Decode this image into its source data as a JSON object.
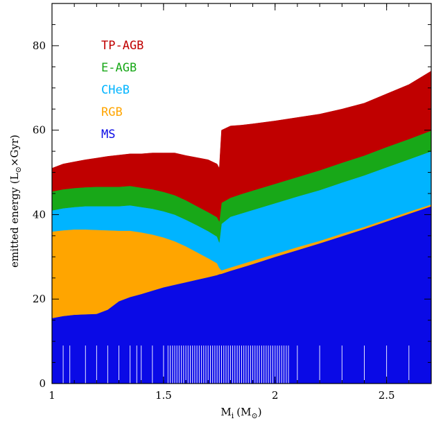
{
  "chart_data": {
    "type": "area",
    "stacked": true,
    "xlabel": "M",
    "xlabel_sub": "i",
    "xlabel_unit": "(M",
    "xlabel_unit_sub": "⊙",
    "xlabel_close": ")",
    "ylabel": "emitted energy (L",
    "ylabel_sub": "⊙",
    "ylabel_tail": "×Gyr)",
    "xlim": [
      1.0,
      2.7
    ],
    "ylim": [
      0,
      90
    ],
    "x_ticks": [
      1,
      1.5,
      2,
      2.5
    ],
    "x_tick_labels": [
      "1",
      "1.5",
      "2",
      "2.5"
    ],
    "y_ticks": [
      0,
      20,
      40,
      60,
      80
    ],
    "y_tick_labels": [
      "0",
      "20",
      "40",
      "60",
      "80"
    ],
    "legend_placement": "top-left, inside plot",
    "grid": false,
    "x": [
      1.0,
      1.05,
      1.1,
      1.15,
      1.2,
      1.25,
      1.3,
      1.35,
      1.4,
      1.45,
      1.5,
      1.55,
      1.6,
      1.65,
      1.7,
      1.74,
      1.75,
      1.76,
      1.8,
      1.85,
      1.9,
      2.0,
      2.1,
      2.2,
      2.3,
      2.4,
      2.5,
      2.6,
      2.7
    ],
    "series": [
      {
        "name": "MS",
        "color": "#0a0ae6",
        "values": [
          15.5,
          16.0,
          16.3,
          16.4,
          16.5,
          17.5,
          19.5,
          20.5,
          21.2,
          22.0,
          22.8,
          23.4,
          24.0,
          24.6,
          25.2,
          25.7,
          25.9,
          26.0,
          26.7,
          27.5,
          28.3,
          30.0,
          31.6,
          33.2,
          34.9,
          36.6,
          38.4,
          40.2,
          42.0
        ]
      },
      {
        "name": "RGB",
        "color": "#ffa500",
        "values": [
          20.5,
          20.3,
          20.2,
          20.1,
          19.9,
          18.8,
          16.7,
          15.7,
          14.6,
          13.3,
          11.8,
          10.3,
          8.5,
          6.5,
          4.5,
          2.8,
          1.5,
          0.8,
          0.8,
          0.8,
          0.8,
          0.7,
          0.7,
          0.6,
          0.6,
          0.5,
          0.5,
          0.5,
          0.4
        ]
      },
      {
        "name": "CHeB",
        "color": "#00b4ff",
        "values": [
          5.0,
          5.2,
          5.3,
          5.5,
          5.6,
          5.7,
          5.8,
          6.0,
          6.0,
          6.1,
          6.2,
          6.3,
          6.3,
          6.4,
          6.4,
          6.3,
          6.0,
          11.0,
          12.0,
          12.0,
          12.0,
          12.0,
          12.0,
          12.0,
          12.1,
          12.2,
          12.3,
          12.4,
          12.6
        ]
      },
      {
        "name": "E-AGB",
        "color": "#18a818",
        "values": [
          4.5,
          4.5,
          4.5,
          4.5,
          4.6,
          4.6,
          4.6,
          4.6,
          4.6,
          4.6,
          4.6,
          4.6,
          4.6,
          4.5,
          4.5,
          4.6,
          5.0,
          5.0,
          4.5,
          4.6,
          4.6,
          4.6,
          4.6,
          4.7,
          4.7,
          4.7,
          4.8,
          4.8,
          4.9
        ]
      },
      {
        "name": "TP-AGB",
        "color": "#c00000",
        "values": [
          5.5,
          6.0,
          6.2,
          6.5,
          6.8,
          7.2,
          7.5,
          7.6,
          8.0,
          8.6,
          9.2,
          10.0,
          10.6,
          11.5,
          12.4,
          12.6,
          12.6,
          17.2,
          17.0,
          16.3,
          15.8,
          14.9,
          14.1,
          13.3,
          12.7,
          12.4,
          12.6,
          12.9,
          14.1
        ]
      }
    ],
    "legend": [
      {
        "name": "TP-AGB",
        "color": "#c00000"
      },
      {
        "name": "E-AGB",
        "color": "#18a818"
      },
      {
        "name": "CHeB",
        "color": "#00b4ff"
      },
      {
        "name": "RGB",
        "color": "#ffa500"
      },
      {
        "name": "MS",
        "color": "#0a0ae6"
      }
    ],
    "rug_color": "#e8e8ff",
    "rug_height": 9,
    "rug_x": [
      1.05,
      1.08,
      1.15,
      1.2,
      1.25,
      1.3,
      1.35,
      1.38,
      1.4,
      1.45,
      1.5,
      1.52,
      1.53,
      1.54,
      1.55,
      1.56,
      1.57,
      1.58,
      1.59,
      1.6,
      1.61,
      1.62,
      1.63,
      1.64,
      1.65,
      1.66,
      1.67,
      1.68,
      1.69,
      1.7,
      1.71,
      1.72,
      1.73,
      1.74,
      1.75,
      1.76,
      1.77,
      1.78,
      1.79,
      1.8,
      1.81,
      1.82,
      1.83,
      1.84,
      1.85,
      1.86,
      1.87,
      1.88,
      1.89,
      1.9,
      1.91,
      1.92,
      1.93,
      1.94,
      1.95,
      1.96,
      1.97,
      1.98,
      1.99,
      2.0,
      2.01,
      2.02,
      2.03,
      2.04,
      2.05,
      2.06,
      2.1,
      2.2,
      2.3,
      2.4,
      2.5,
      2.6
    ]
  }
}
